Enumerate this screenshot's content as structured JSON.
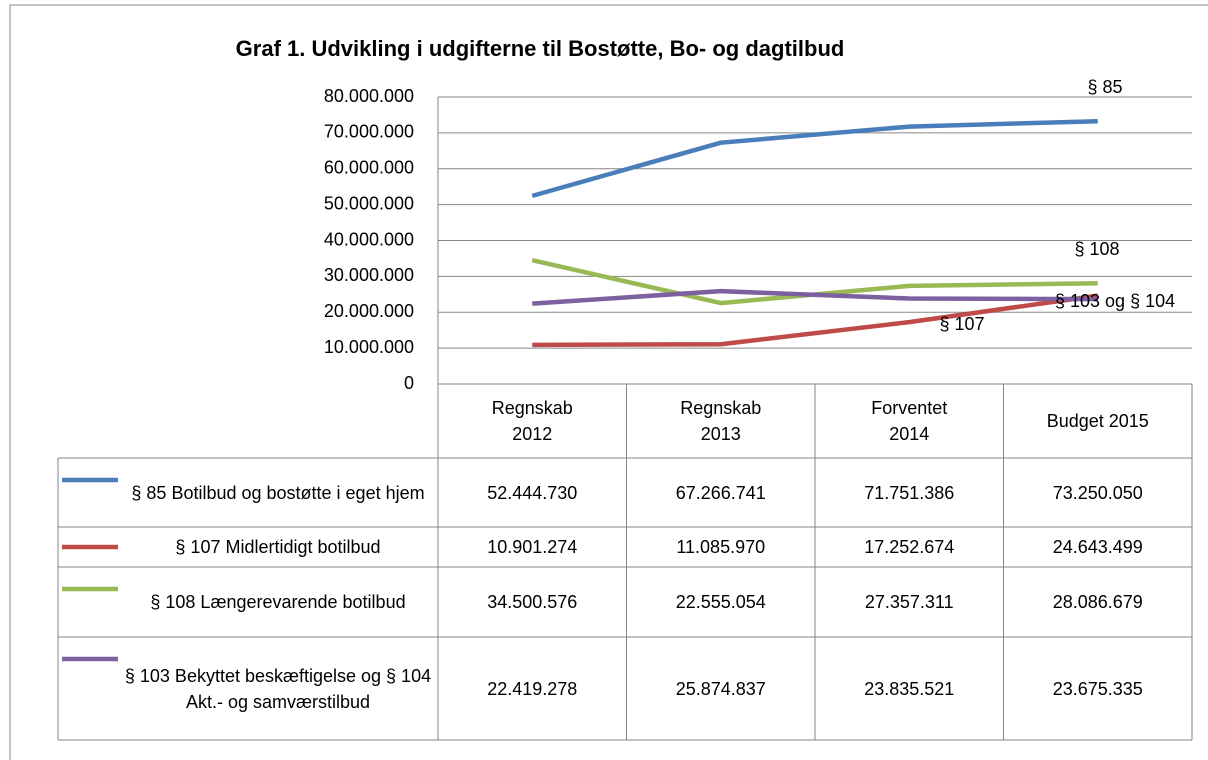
{
  "chart_data": {
    "type": "line",
    "title": "Graf 1. Udvikling i udgifterne til Bostøtte, Bo- og dagtilbud",
    "categories": [
      "Regnskab 2012",
      "Regnskab 2013",
      "Forventet 2014",
      "Budget 2015"
    ],
    "series": [
      {
        "name": "§ 85 Botilbud og bostøtte i eget hjem",
        "color": "#4a7ebb",
        "values": [
          52444730,
          67266741,
          71751386,
          73250050
        ],
        "value_labels": [
          "52.444.730",
          "67.266.741",
          "71.751.386",
          "73.250.050"
        ]
      },
      {
        "name": "§ 107 Midlertidigt botilbud",
        "color": "#be4b48",
        "values": [
          10901274,
          11085970,
          17252674,
          24643499
        ],
        "value_labels": [
          "10.901.274",
          "11.085.970",
          "17.252.674",
          "24.643.499"
        ]
      },
      {
        "name": "§ 108 Længerevarende botilbud",
        "color": "#98b954",
        "values": [
          34500576,
          22555054,
          27357311,
          28086679
        ],
        "value_labels": [
          "34.500.576",
          "22.555.054",
          "27.357.311",
          "28.086.679"
        ]
      },
      {
        "name": "§ 103 Bekyttet beskæftigelse og § 104 Akt.- og samværstilbud",
        "color": "#7d60a0",
        "values": [
          22419278,
          25874837,
          23835521,
          23675335
        ],
        "value_labels": [
          "22.419.278",
          "25.874.837",
          "23.835.521",
          "23.675.335"
        ]
      }
    ],
    "annotations": [
      "§ 85",
      "§ 107",
      "§ 108",
      "§ 103 og § 104"
    ],
    "ylim": [
      0,
      80000000
    ],
    "yticks": [
      0,
      {
        "value": 10000000,
        "label": "10.000.000"
      },
      {
        "value": 20000000,
        "label": "20.000.000"
      },
      {
        "value": 30000000,
        "label": "30.000.000"
      },
      {
        "value": 40000000,
        "label": "40.000.000"
      },
      {
        "value": 50000000,
        "label": "50.000.000"
      },
      {
        "value": 60000000,
        "label": "60.000.000"
      },
      {
        "value": 70000000,
        "label": "70.000.000"
      },
      {
        "value": 80000000,
        "label": "80.000.000"
      }
    ],
    "grid": true
  }
}
